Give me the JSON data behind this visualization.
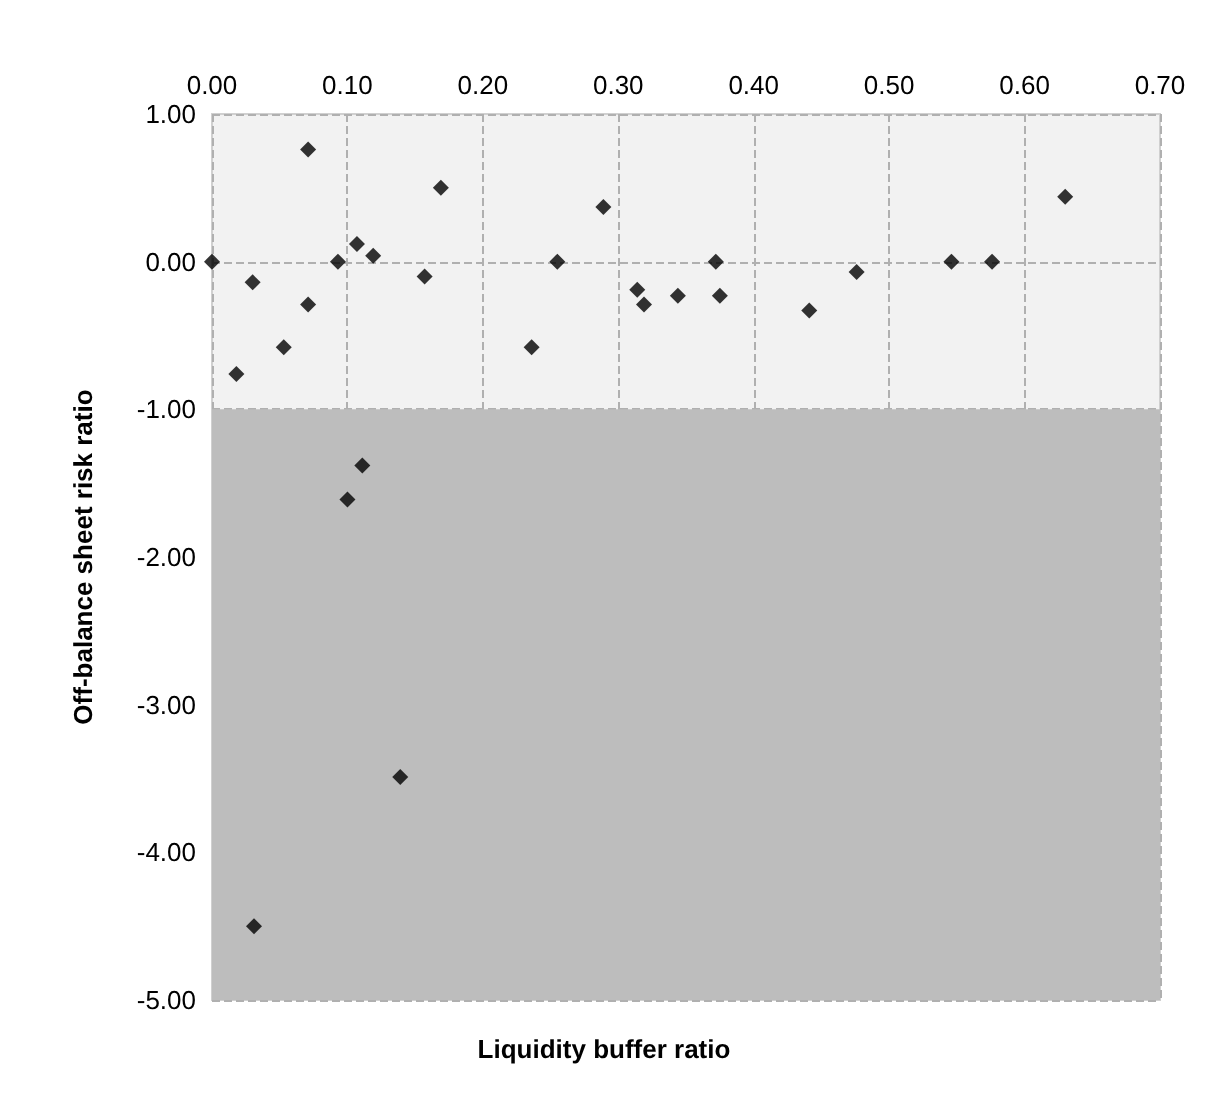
{
  "chart_data": {
    "type": "scatter",
    "xlabel": "Liquidity buffer ratio",
    "ylabel": "Off-balance sheet risk ratio",
    "x": [
      0,
      0.018,
      0.03,
      0.053,
      0.071,
      0.071,
      0.093,
      0.107,
      0.119,
      0.157,
      0.169,
      0.236,
      0.255,
      0.289,
      0.314,
      0.319,
      0.344,
      0.372,
      0.375,
      0.441,
      0.476,
      0.546,
      0.576,
      0.63,
      0.111,
      0.1,
      0.139,
      0.031
    ],
    "values": [
      0,
      -0.76,
      -0.14,
      -0.58,
      0.76,
      -0.29,
      0,
      0.12,
      0.04,
      -0.1,
      0.5,
      -0.58,
      0,
      0.37,
      -0.19,
      -0.29,
      -0.23,
      0,
      -0.23,
      -0.33,
      -0.07,
      0,
      0,
      0.44,
      -1.38,
      -1.61,
      -3.49,
      -4.5
    ],
    "color": "#000000",
    "marker": "diamond",
    "xlim": [
      0,
      0.7
    ],
    "xticks": [
      {
        "value": 0,
        "label": "0.00"
      },
      {
        "value": 0.1,
        "label": "0.10"
      },
      {
        "value": 0.2,
        "label": "0.20"
      },
      {
        "value": 0.3,
        "label": "0.30"
      },
      {
        "value": 0.4,
        "label": "0.40"
      },
      {
        "value": 0.5,
        "label": "0.50"
      },
      {
        "value": 0.6,
        "label": "0.60"
      },
      {
        "value": 0.7,
        "label": "0.70"
      }
    ],
    "ylim": [
      -5,
      1
    ],
    "yticks": [
      {
        "value": -5,
        "label": "-5.00"
      },
      {
        "value": -4,
        "label": "-4.00"
      },
      {
        "value": -3,
        "label": "-3.00"
      },
      {
        "value": -2,
        "label": "-2.00"
      },
      {
        "value": -1,
        "label": "-1.00"
      },
      {
        "value": 0,
        "label": "0.00"
      },
      {
        "value": 1,
        "label": "1.00"
      }
    ],
    "bands": [
      {
        "axis": "y",
        "from": -5,
        "to": -1,
        "color": "#bdbdbd"
      }
    ],
    "grid": true
  }
}
